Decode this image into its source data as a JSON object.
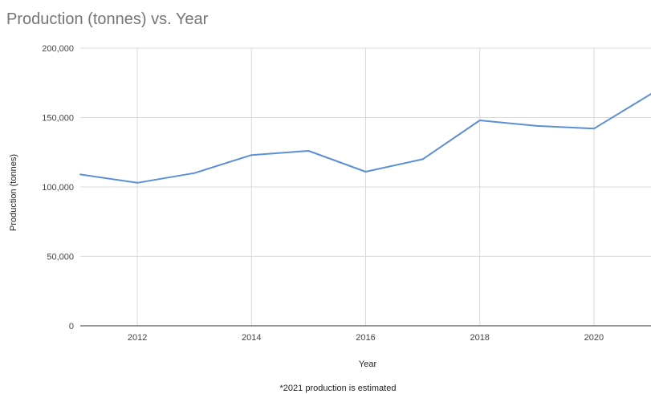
{
  "chart_data": {
    "type": "line",
    "title": "Production (tonnes) vs. Year",
    "xlabel": "Year",
    "ylabel": "Production (tonnes)",
    "footnote": "*2021 production is estimated",
    "x": [
      2011,
      2012,
      2013,
      2014,
      2015,
      2016,
      2017,
      2018,
      2019,
      2020,
      2021
    ],
    "series": [
      {
        "values": [
          109000,
          103000,
          110000,
          123000,
          126000,
          111000,
          120000,
          148000,
          144000,
          142000,
          167000
        ]
      }
    ],
    "xlim": [
      2011,
      2021
    ],
    "ylim": [
      0,
      200000
    ],
    "xticks": [
      2012,
      2014,
      2016,
      2018,
      2020
    ],
    "xtick_labels": [
      "2012",
      "2014",
      "2016",
      "2018",
      "2020"
    ],
    "yticks": [
      0,
      50000,
      100000,
      150000,
      200000
    ],
    "ytick_labels": [
      "0",
      "50,000",
      "100,000",
      "150,000",
      "200,000"
    ],
    "grid": true,
    "line_color": "#5b8fd6"
  }
}
